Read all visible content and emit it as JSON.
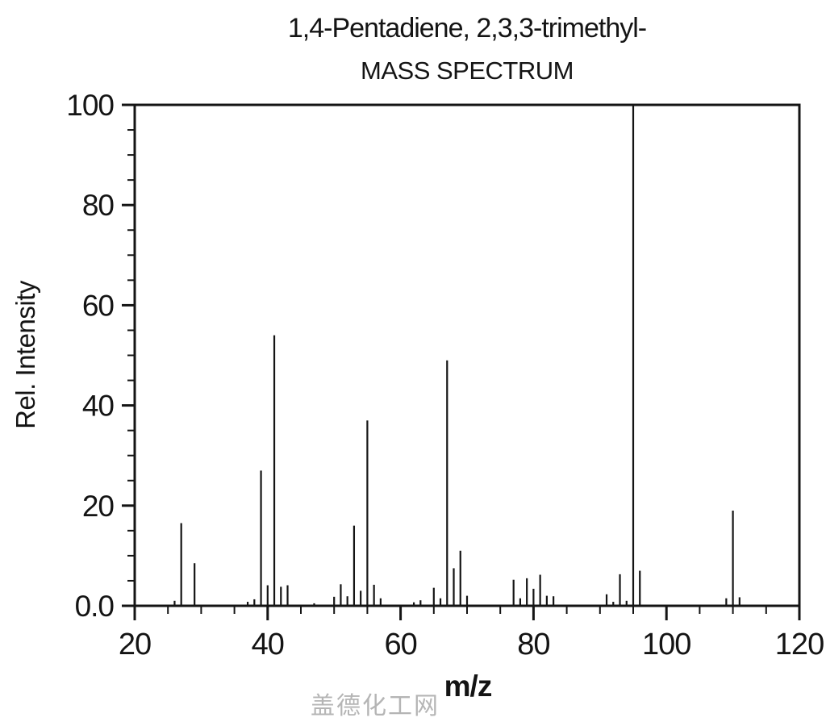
{
  "watermark": {
    "text": "盖德化工网",
    "color": "#b5b5b5"
  },
  "chart_data": {
    "type": "bar",
    "variant": "mass-spectrum",
    "title": "1,4-Pentadiene, 2,3,3-trimethyl-",
    "subtitle": "MASS SPECTRUM",
    "xlabel": "m/z",
    "ylabel": "Rel. Intensity",
    "xlim": [
      20,
      120
    ],
    "ylim": [
      0,
      100
    ],
    "x_major_ticks": [
      20,
      40,
      60,
      80,
      100,
      120
    ],
    "y_major_ticks": [
      0,
      20,
      40,
      60,
      80,
      100
    ],
    "y_tick_labels": [
      "0.0",
      "20",
      "40",
      "60",
      "80",
      "100"
    ],
    "minor_tick_step": 5,
    "grid": false,
    "legend": "none",
    "line_color": "#141414",
    "peaks": [
      {
        "mz": 26,
        "intensity": 1.0
      },
      {
        "mz": 27,
        "intensity": 16.5
      },
      {
        "mz": 29,
        "intensity": 8.5
      },
      {
        "mz": 37,
        "intensity": 0.8
      },
      {
        "mz": 38,
        "intensity": 1.3
      },
      {
        "mz": 39,
        "intensity": 27
      },
      {
        "mz": 40,
        "intensity": 4.1
      },
      {
        "mz": 41,
        "intensity": 54
      },
      {
        "mz": 42,
        "intensity": 3.8
      },
      {
        "mz": 43,
        "intensity": 4.1
      },
      {
        "mz": 47,
        "intensity": 0.5
      },
      {
        "mz": 50,
        "intensity": 1.8
      },
      {
        "mz": 51,
        "intensity": 4.3
      },
      {
        "mz": 52,
        "intensity": 1.9
      },
      {
        "mz": 53,
        "intensity": 16
      },
      {
        "mz": 54,
        "intensity": 3.0
      },
      {
        "mz": 55,
        "intensity": 37
      },
      {
        "mz": 56,
        "intensity": 4.2
      },
      {
        "mz": 57,
        "intensity": 1.5
      },
      {
        "mz": 62,
        "intensity": 0.7
      },
      {
        "mz": 63,
        "intensity": 1.1
      },
      {
        "mz": 65,
        "intensity": 3.6
      },
      {
        "mz": 66,
        "intensity": 1.5
      },
      {
        "mz": 67,
        "intensity": 49
      },
      {
        "mz": 68,
        "intensity": 7.5
      },
      {
        "mz": 69,
        "intensity": 11
      },
      {
        "mz": 70,
        "intensity": 2.0
      },
      {
        "mz": 77,
        "intensity": 5.2
      },
      {
        "mz": 78,
        "intensity": 1.5
      },
      {
        "mz": 79,
        "intensity": 5.5
      },
      {
        "mz": 80,
        "intensity": 3.4
      },
      {
        "mz": 81,
        "intensity": 6.2
      },
      {
        "mz": 82,
        "intensity": 2.0
      },
      {
        "mz": 83,
        "intensity": 1.9
      },
      {
        "mz": 91,
        "intensity": 2.3
      },
      {
        "mz": 92,
        "intensity": 0.8
      },
      {
        "mz": 93,
        "intensity": 6.3
      },
      {
        "mz": 94,
        "intensity": 1.0
      },
      {
        "mz": 95,
        "intensity": 100
      },
      {
        "mz": 96,
        "intensity": 7.0
      },
      {
        "mz": 109,
        "intensity": 1.5
      },
      {
        "mz": 110,
        "intensity": 19
      },
      {
        "mz": 111,
        "intensity": 1.7
      }
    ]
  }
}
